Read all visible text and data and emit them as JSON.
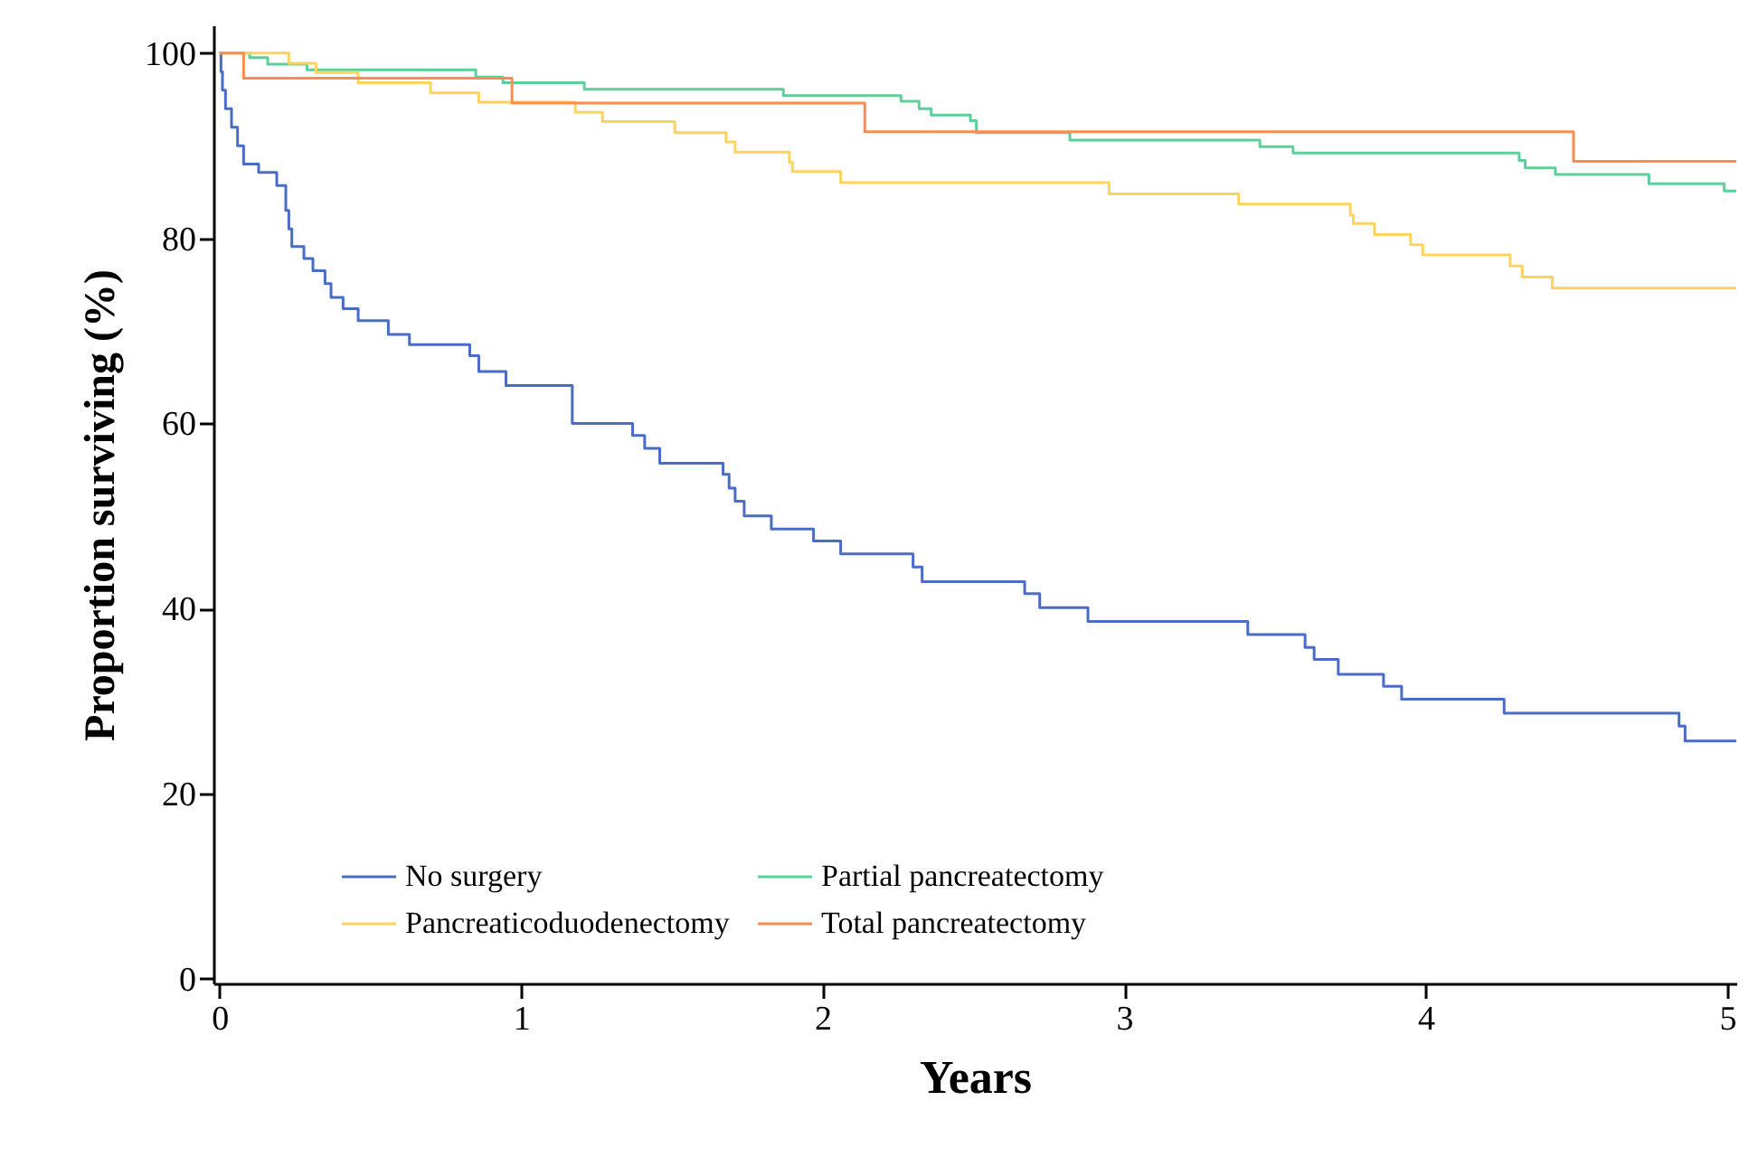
{
  "chart_data": {
    "type": "step",
    "xlabel": "Years",
    "ylabel": "Proportion surviving (%)",
    "xlim": [
      -0.02,
      5.03
    ],
    "ylim": [
      -0.5,
      103
    ],
    "xticks": [
      0,
      1,
      2,
      3,
      4,
      5
    ],
    "yticks": [
      0,
      20,
      40,
      60,
      80,
      100
    ],
    "grid": false,
    "legend": "bottom",
    "marker": "none",
    "line_style": "solid",
    "series": [
      {
        "name": "No surgery",
        "color": "#4a6cc6",
        "x": [
          0,
          0.005,
          0.01,
          0.02,
          0.04,
          0.06,
          0.08,
          0.13,
          0.19,
          0.22,
          0.23,
          0.24,
          0.28,
          0.31,
          0.35,
          0.37,
          0.41,
          0.46,
          0.56,
          0.63,
          0.83,
          0.86,
          0.95,
          1.17,
          1.37,
          1.41,
          1.46,
          1.67,
          1.69,
          1.71,
          1.74,
          1.83,
          1.97,
          2.06,
          2.3,
          2.33,
          2.67,
          2.72,
          2.88,
          3.41,
          3.6,
          3.63,
          3.71,
          3.86,
          3.92,
          4.26,
          4.84,
          4.86,
          5.03
        ],
        "values": [
          100,
          98,
          96,
          94,
          92,
          90,
          88,
          87.1,
          85.7,
          83,
          81,
          79.1,
          77.8,
          76.5,
          75.1,
          73.6,
          72.4,
          71.1,
          69.6,
          68.5,
          67.3,
          65.6,
          64.1,
          60,
          58.7,
          57.3,
          55.7,
          54.5,
          53,
          51.6,
          50,
          48.6,
          47.3,
          45.9,
          44.5,
          42.9,
          41.6,
          40.1,
          38.6,
          37.2,
          35.8,
          34.5,
          32.9,
          31.6,
          30.2,
          28.7,
          27.3,
          25.7,
          25.7
        ]
      },
      {
        "name": "Partial pancreatectomy",
        "color": "#5ccf9a",
        "x": [
          0,
          0.1,
          0.16,
          0.29,
          0.85,
          0.94,
          1.21,
          1.87,
          2.26,
          2.32,
          2.36,
          2.49,
          2.51,
          2.82,
          3.45,
          3.56,
          4.31,
          4.33,
          4.43,
          4.74,
          4.99,
          5.03
        ],
        "values": [
          100,
          99.5,
          98.8,
          98.2,
          97.4,
          96.8,
          96.1,
          95.4,
          94.8,
          94,
          93.3,
          92.7,
          91.4,
          90.6,
          89.9,
          89.2,
          88.4,
          87.6,
          86.9,
          85.9,
          85.1,
          85.1
        ]
      },
      {
        "name": "Pancreaticoduodenectomy",
        "color": "#ffd35c",
        "x": [
          0,
          0.23,
          0.32,
          0.46,
          0.7,
          0.86,
          1.18,
          1.27,
          1.51,
          1.68,
          1.71,
          1.89,
          1.9,
          2.06,
          2.95,
          3.38,
          3.75,
          3.76,
          3.83,
          3.95,
          3.99,
          4.28,
          4.32,
          4.42,
          5.03
        ],
        "values": [
          100,
          98.9,
          97.9,
          96.8,
          95.7,
          94.7,
          93.6,
          92.6,
          91.4,
          90.4,
          89.3,
          88.2,
          87.2,
          86,
          84.8,
          83.7,
          82.5,
          81.6,
          80.4,
          79.3,
          78.2,
          77,
          75.8,
          74.6,
          74.6
        ]
      },
      {
        "name": "Total pancreatectomy",
        "color": "#ff8c4f",
        "x": [
          0,
          0.08,
          0.97,
          2.14,
          4.49,
          5.03
        ],
        "values": [
          100,
          97.3,
          94.6,
          91.5,
          88.3,
          88.3
        ]
      }
    ]
  }
}
